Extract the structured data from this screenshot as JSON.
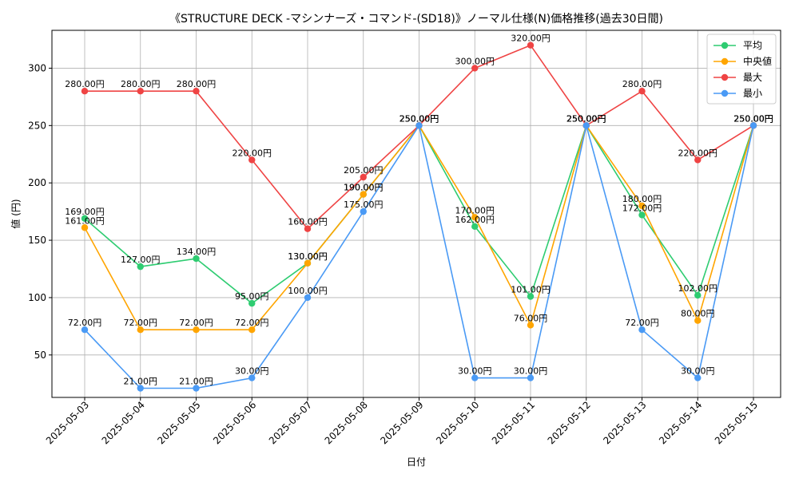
{
  "chart_data": {
    "type": "line",
    "title": "《STRUCTURE DECK -マシンナーズ・コマンド-(SD18)》ノーマル仕様(N)価格推移(過去30日間)",
    "xlabel": "日付",
    "ylabel": "値 (円)",
    "categories": [
      "2025-05-03",
      "2025-05-04",
      "2025-05-05",
      "2025-05-06",
      "2025-05-07",
      "2025-05-08",
      "2025-05-09",
      "2025-05-10",
      "2025-05-11",
      "2025-05-12",
      "2025-05-13",
      "2025-05-14",
      "2025-05-15"
    ],
    "ylim": [
      13,
      333
    ],
    "yticks": [
      50,
      100,
      150,
      200,
      250,
      300
    ],
    "grid": true,
    "legend_position": "top-right",
    "value_suffix": "円",
    "series": [
      {
        "name": "平均",
        "color": "#2ecc71",
        "values": [
          169,
          127,
          134,
          95,
          130,
          190,
          250,
          162,
          101,
          250,
          172,
          102,
          250
        ]
      },
      {
        "name": "中央値",
        "color": "#ffa500",
        "values": [
          161,
          72,
          72,
          72,
          130,
          190,
          250,
          170,
          76,
          250,
          180,
          80,
          250
        ]
      },
      {
        "name": "最大",
        "color": "#ef4444",
        "values": [
          280,
          280,
          280,
          220,
          160,
          205,
          250,
          300,
          320,
          250,
          280,
          220,
          250
        ]
      },
      {
        "name": "最小",
        "color": "#4a9af5",
        "values": [
          72,
          21,
          21,
          30,
          100,
          175,
          250,
          30,
          30,
          250,
          72,
          30,
          250
        ]
      }
    ]
  }
}
